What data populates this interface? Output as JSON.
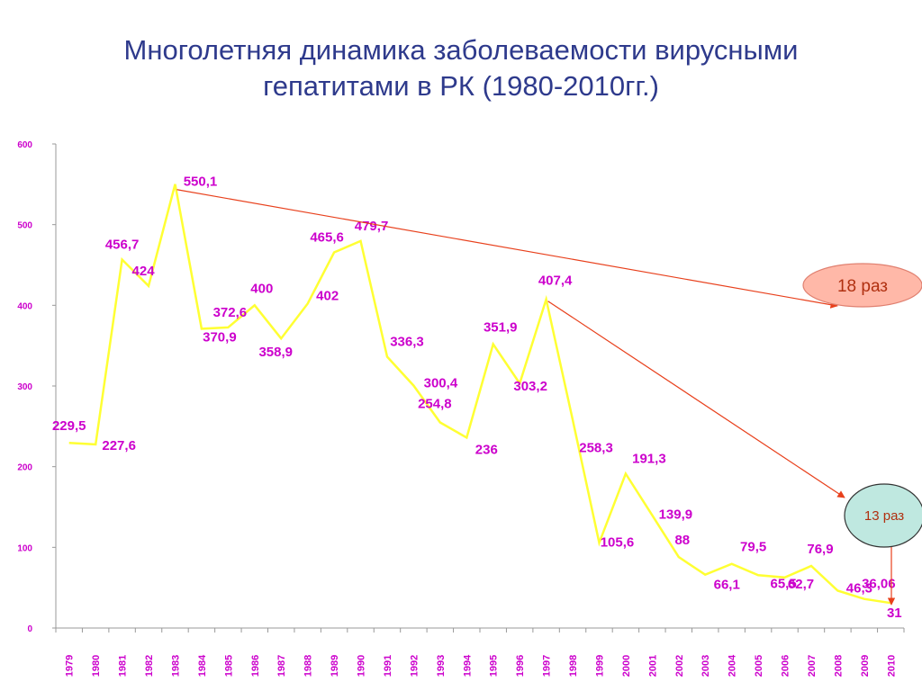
{
  "title": {
    "line1": "Многолетняя динамика заболеваемости вирусными",
    "line2": "гепатитами в РК (1980-2010гг.)"
  },
  "colors": {
    "line": "#ffff33",
    "labels": "#cc00cc",
    "arrows": "#e8401c",
    "bubble18_fill": "#ffb8a8",
    "bubble13_fill": "#bfe8e0",
    "title": "#2e3a8c"
  },
  "chart_data": {
    "type": "line",
    "title": "Многолетняя динамика заболеваемости вирусными гепатитами в РК (1980-2010гг.)",
    "xlabel": "",
    "ylabel": "",
    "ylim": [
      0,
      600
    ],
    "yticks": [
      "0",
      "100",
      "200",
      "300",
      "400",
      "500",
      "600"
    ],
    "categories": [
      "1979",
      "1980",
      "1981",
      "1982",
      "1983",
      "1984",
      "1985",
      "1986",
      "1987",
      "1988",
      "1989",
      "1990",
      "1991",
      "1992",
      "1993",
      "1994",
      "1995",
      "1996",
      "1997",
      "1998",
      "1999",
      "2000",
      "2001",
      "2002",
      "2003",
      "2004",
      "2005",
      "2006",
      "2007",
      "2008",
      "2009",
      "2010"
    ],
    "series": [
      {
        "values": [
          229.5,
          227.6,
          456.7,
          424,
          550.1,
          370.9,
          372.6,
          400,
          358.9,
          402,
          465.6,
          479.7,
          336.3,
          300.4,
          254.8,
          236,
          351.9,
          303.2,
          407.4,
          258.3,
          105.6,
          191.3,
          139.9,
          88,
          66.1,
          79.5,
          65.5,
          62.7,
          76.9,
          46.3,
          36.06,
          31
        ],
        "labels": [
          "229,5",
          "227,6",
          "456,7",
          "424",
          "550,1",
          "370,9",
          "372,6",
          "400",
          "358,9",
          "402",
          "465,6",
          "479,7",
          "336,3",
          "300,4",
          "254,8",
          "236",
          "351,9",
          "303,2",
          "407,4",
          "258,3",
          "105,6",
          "191,3",
          "139,9",
          "88",
          "66,1",
          "79,5",
          "65,5",
          "62,7",
          "76,9",
          "46,3",
          "36,06",
          "31"
        ]
      }
    ],
    "grid": false,
    "annotations": [
      {
        "text": "18 раз",
        "from_year": "1983",
        "to_year": "2010"
      },
      {
        "text": "13 раз",
        "from_year": "1997",
        "to_year": "2010"
      }
    ]
  }
}
